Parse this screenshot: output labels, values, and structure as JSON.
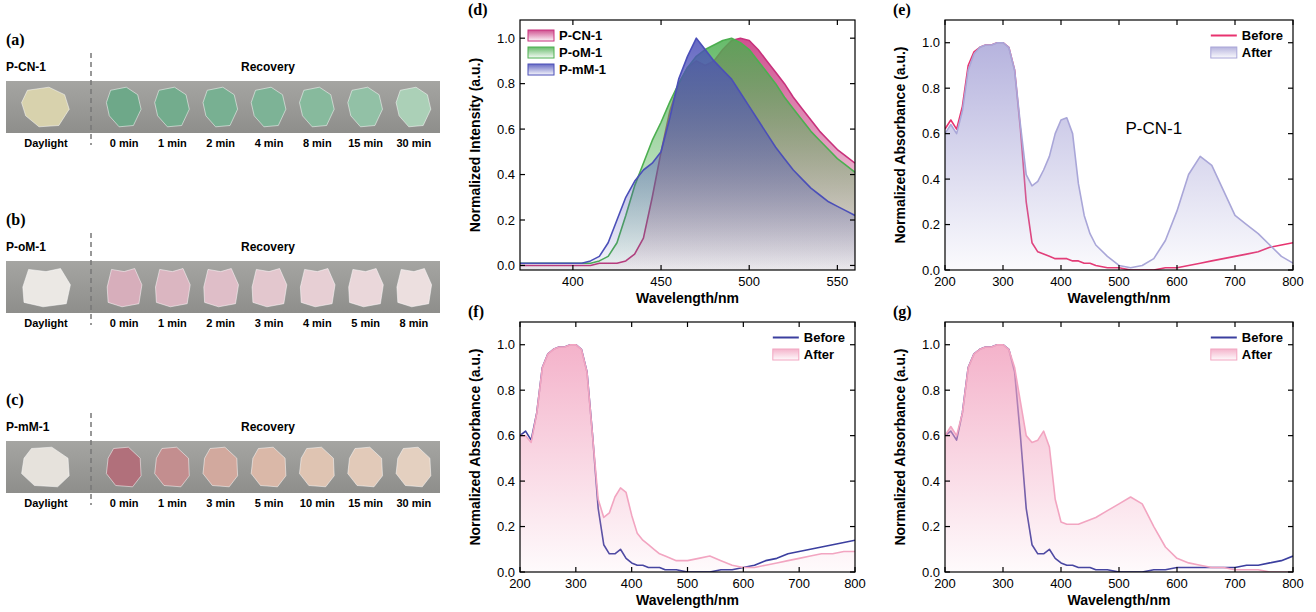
{
  "photo_panels": [
    {
      "label": "(a)",
      "sample": "P-CN-1",
      "heading": "Recovery",
      "reference": "Daylight",
      "times": [
        "0 min",
        "1 min",
        "2 min",
        "4 min",
        "8 min",
        "15 min",
        "30 min"
      ],
      "daylight_color": "#d8d2ad",
      "colors": [
        "#6ea889",
        "#73ac8d",
        "#78b092",
        "#7db396",
        "#87ba9d",
        "#92c1a6",
        "#abd0b7"
      ]
    },
    {
      "label": "(b)",
      "sample": "P-oM-1",
      "heading": "Recovery",
      "reference": "Daylight",
      "times": [
        "0 min",
        "1 min",
        "2 min",
        "3 min",
        "4 min",
        "5 min",
        "8 min"
      ],
      "daylight_color": "#ebe8e4",
      "colors": [
        "#d7aebb",
        "#dbb6c1",
        "#dfbec8",
        "#e3c7ce",
        "#e7cfd4",
        "#ead7da",
        "#ecdfdf"
      ]
    },
    {
      "label": "(c)",
      "sample": "P-mM-1",
      "heading": "Recovery",
      "reference": "Daylight",
      "times": [
        "0 min",
        "1 min",
        "3 min",
        "5 min",
        "10 min",
        "15 min",
        "30 min"
      ],
      "daylight_color": "#e6e2dc",
      "colors": [
        "#b1707b",
        "#c38e8f",
        "#d2a99e",
        "#dab8a8",
        "#dfc4b2",
        "#e2cab9",
        "#e4d0c0"
      ]
    }
  ],
  "chart_data": [
    {
      "type": "line",
      "panel_label": "(d)",
      "x_label": "Wavelength/nm",
      "y_label": "Normalized Intensity (a.u.)",
      "x": [
        370,
        375,
        380,
        385,
        390,
        395,
        400,
        405,
        410,
        415,
        420,
        425,
        430,
        435,
        440,
        445,
        450,
        455,
        460,
        465,
        470,
        475,
        480,
        485,
        490,
        495,
        500,
        505,
        510,
        515,
        520,
        525,
        530,
        535,
        540,
        545,
        550,
        555,
        560
      ],
      "series": [
        {
          "name": "P-CN-1",
          "type": "area",
          "color": "#c8317c",
          "values": [
            0,
            0,
            0,
            0,
            0,
            0,
            0,
            0,
            0,
            0.01,
            0.01,
            0.01,
            0.02,
            0.05,
            0.12,
            0.3,
            0.5,
            0.68,
            0.8,
            0.87,
            0.9,
            0.88,
            0.9,
            0.95,
            0.99,
            1.0,
            0.99,
            0.95,
            0.9,
            0.85,
            0.8,
            0.74,
            0.69,
            0.64,
            0.59,
            0.55,
            0.51,
            0.48,
            0.45
          ]
        },
        {
          "name": "P-oM-1",
          "type": "area",
          "color": "#4caf50",
          "values": [
            0.01,
            0.01,
            0.01,
            0.01,
            0.01,
            0.01,
            0.01,
            0.01,
            0.01,
            0.02,
            0.04,
            0.1,
            0.22,
            0.35,
            0.45,
            0.55,
            0.63,
            0.72,
            0.8,
            0.87,
            0.92,
            0.95,
            0.97,
            0.99,
            1.0,
            0.98,
            0.95,
            0.9,
            0.85,
            0.8,
            0.74,
            0.69,
            0.64,
            0.59,
            0.55,
            0.51,
            0.47,
            0.44,
            0.41
          ]
        },
        {
          "name": "P-mM-1",
          "type": "area",
          "color": "#4b4fb8",
          "values": [
            0.01,
            0.01,
            0.01,
            0.01,
            0.01,
            0.01,
            0.01,
            0.01,
            0.02,
            0.04,
            0.1,
            0.2,
            0.3,
            0.37,
            0.42,
            0.45,
            0.5,
            0.65,
            0.82,
            0.92,
            1.0,
            0.95,
            0.9,
            0.86,
            0.82,
            0.76,
            0.7,
            0.64,
            0.58,
            0.52,
            0.47,
            0.42,
            0.38,
            0.34,
            0.31,
            0.28,
            0.26,
            0.24,
            0.22
          ]
        }
      ],
      "xlim": [
        370,
        560
      ],
      "xticks": [
        400,
        450,
        500,
        550
      ],
      "ylim": [
        -0.02,
        1.08
      ],
      "yticks": [
        {
          "value": 0,
          "label": "0.0"
        },
        0.2,
        0.4,
        0.6,
        0.8,
        {
          "value": 1,
          "label": "1.0"
        }
      ],
      "legend": "upper left"
    },
    {
      "type": "line",
      "panel_label": "(e)",
      "annotation": "P-CN-1",
      "x_label": "Wavelength/nm",
      "y_label": "Normalized Absorbance (a.u.)",
      "x": [
        200,
        210,
        220,
        230,
        240,
        250,
        260,
        270,
        280,
        290,
        300,
        310,
        320,
        330,
        340,
        350,
        360,
        370,
        380,
        390,
        400,
        410,
        420,
        430,
        440,
        450,
        460,
        480,
        500,
        520,
        540,
        560,
        580,
        600,
        620,
        640,
        660,
        680,
        700,
        720,
        740,
        760,
        780,
        800
      ],
      "series": [
        {
          "name": "Before",
          "type": "line",
          "color": "#e8336f",
          "values": [
            0.62,
            0.66,
            0.62,
            0.72,
            0.9,
            0.96,
            0.98,
            0.99,
            0.99,
            1.0,
            1.0,
            0.98,
            0.88,
            0.62,
            0.3,
            0.12,
            0.08,
            0.07,
            0.06,
            0.05,
            0.05,
            0.05,
            0.04,
            0.04,
            0.03,
            0.03,
            0.02,
            0.01,
            0.01,
            0,
            0,
            0,
            0.01,
            0.01,
            0.02,
            0.03,
            0.04,
            0.05,
            0.06,
            0.07,
            0.08,
            0.1,
            0.11,
            0.12
          ]
        },
        {
          "name": "After",
          "type": "area",
          "color": "#a9a6d8",
          "values": [
            0.6,
            0.64,
            0.6,
            0.7,
            0.88,
            0.95,
            0.98,
            0.99,
            0.99,
            1.0,
            1.0,
            0.98,
            0.88,
            0.64,
            0.42,
            0.37,
            0.39,
            0.44,
            0.5,
            0.6,
            0.66,
            0.67,
            0.6,
            0.38,
            0.24,
            0.16,
            0.11,
            0.06,
            0.02,
            0.01,
            0.02,
            0.05,
            0.13,
            0.26,
            0.42,
            0.5,
            0.46,
            0.35,
            0.24,
            0.2,
            0.16,
            0.11,
            0.06,
            0.03
          ]
        }
      ],
      "xlim": [
        200,
        800
      ],
      "xticks": [
        200,
        300,
        400,
        500,
        600,
        700,
        800
      ],
      "ylim": [
        0,
        1.1
      ],
      "yticks": [
        {
          "value": 0,
          "label": "0.0"
        },
        0.2,
        0.4,
        0.6,
        0.8,
        {
          "value": 1,
          "label": "1.0"
        }
      ],
      "legend": "upper right"
    },
    {
      "type": "line",
      "panel_label": "(f)",
      "x_label": "Wavelength/nm",
      "y_label": "Normalized Absorbance (a.u.)",
      "x": [
        200,
        210,
        220,
        230,
        240,
        250,
        260,
        270,
        280,
        290,
        300,
        310,
        320,
        330,
        340,
        350,
        360,
        370,
        380,
        390,
        400,
        410,
        420,
        430,
        440,
        450,
        460,
        480,
        500,
        520,
        540,
        560,
        580,
        600,
        620,
        640,
        660,
        680,
        700,
        720,
        740,
        760,
        780,
        800
      ],
      "series": [
        {
          "name": "Before",
          "type": "line",
          "color": "#3b3f9f",
          "values": [
            0.6,
            0.62,
            0.58,
            0.7,
            0.9,
            0.96,
            0.98,
            0.99,
            0.99,
            1.0,
            1.0,
            0.98,
            0.88,
            0.6,
            0.28,
            0.12,
            0.08,
            0.08,
            0.1,
            0.06,
            0.04,
            0.03,
            0.03,
            0.02,
            0.02,
            0.02,
            0.01,
            0.01,
            0,
            0,
            0,
            0.01,
            0.01,
            0.02,
            0.03,
            0.05,
            0.06,
            0.08,
            0.09,
            0.1,
            0.11,
            0.12,
            0.13,
            0.14
          ]
        },
        {
          "name": "After",
          "type": "area",
          "color": "#f2a5c1",
          "values": [
            0.6,
            0.6,
            0.57,
            0.7,
            0.9,
            0.96,
            0.98,
            0.99,
            0.99,
            1.0,
            1.0,
            0.98,
            0.88,
            0.6,
            0.32,
            0.24,
            0.26,
            0.33,
            0.37,
            0.35,
            0.25,
            0.17,
            0.14,
            0.12,
            0.1,
            0.08,
            0.07,
            0.05,
            0.05,
            0.06,
            0.07,
            0.05,
            0.03,
            0.02,
            0.02,
            0.03,
            0.04,
            0.05,
            0.06,
            0.07,
            0.08,
            0.08,
            0.09,
            0.09
          ]
        }
      ],
      "xlim": [
        200,
        800
      ],
      "xticks": [
        200,
        300,
        400,
        500,
        600,
        700,
        800
      ],
      "ylim": [
        0,
        1.1
      ],
      "yticks": [
        {
          "value": 0,
          "label": "0.0"
        },
        0.2,
        0.4,
        0.6,
        0.8,
        {
          "value": 1,
          "label": "1.0"
        }
      ],
      "legend": "upper right"
    },
    {
      "type": "line",
      "panel_label": "(g)",
      "x_label": "Wavelength/nm",
      "y_label": "Normalized Absorbance (a.u.)",
      "x": [
        200,
        210,
        220,
        230,
        240,
        250,
        260,
        270,
        280,
        290,
        300,
        310,
        320,
        330,
        340,
        350,
        360,
        370,
        380,
        390,
        400,
        410,
        420,
        430,
        440,
        450,
        460,
        480,
        500,
        520,
        540,
        560,
        580,
        600,
        620,
        640,
        660,
        680,
        700,
        720,
        740,
        760,
        780,
        800
      ],
      "series": [
        {
          "name": "Before",
          "type": "line",
          "color": "#3b3f9f",
          "values": [
            0.6,
            0.62,
            0.58,
            0.7,
            0.9,
            0.96,
            0.98,
            0.99,
            0.99,
            1.0,
            1.0,
            0.98,
            0.88,
            0.6,
            0.28,
            0.12,
            0.08,
            0.08,
            0.1,
            0.06,
            0.04,
            0.03,
            0.03,
            0.02,
            0.02,
            0.02,
            0.01,
            0.01,
            0,
            0,
            0,
            0.01,
            0.01,
            0.02,
            0.02,
            0.02,
            0.02,
            0.02,
            0.02,
            0.03,
            0.03,
            0.04,
            0.05,
            0.07
          ]
        },
        {
          "name": "After",
          "type": "area",
          "color": "#f2a5c1",
          "values": [
            0.6,
            0.64,
            0.6,
            0.7,
            0.9,
            0.96,
            0.98,
            0.99,
            0.99,
            1.0,
            1.0,
            0.98,
            0.9,
            0.75,
            0.6,
            0.57,
            0.58,
            0.62,
            0.55,
            0.32,
            0.22,
            0.21,
            0.21,
            0.21,
            0.22,
            0.23,
            0.24,
            0.27,
            0.3,
            0.33,
            0.3,
            0.2,
            0.11,
            0.06,
            0.04,
            0.03,
            0.02,
            0.02,
            0.01,
            0.01,
            0.01,
            0,
            0,
            0
          ]
        }
      ],
      "xlim": [
        200,
        800
      ],
      "xticks": [
        200,
        300,
        400,
        500,
        600,
        700,
        800
      ],
      "ylim": [
        0,
        1.1
      ],
      "yticks": [
        {
          "value": 0,
          "label": "0.0"
        },
        0.2,
        0.4,
        0.6,
        0.8,
        {
          "value": 1,
          "label": "1.0"
        }
      ],
      "legend": "upper right"
    }
  ]
}
